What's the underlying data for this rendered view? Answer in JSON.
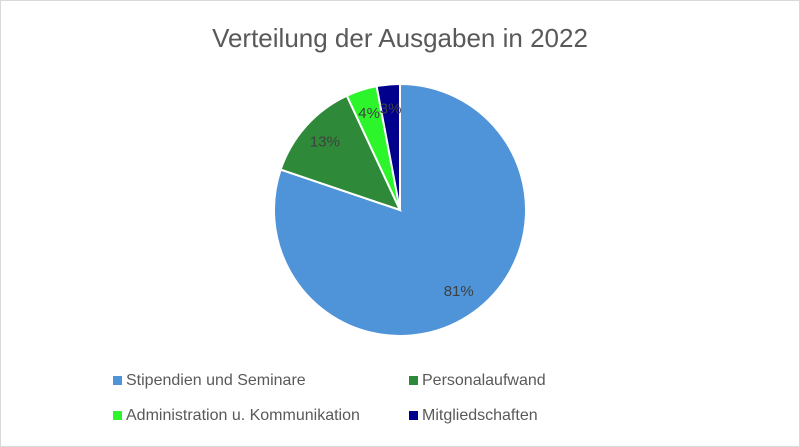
{
  "chart_data": {
    "type": "pie",
    "title": "Verteilung der Ausgaben in 2022",
    "categories": [
      "Stipendien und Seminare",
      "Personalaufwand",
      "Administration u. Kommunikation",
      "Mitgliedschaften"
    ],
    "values": [
      81,
      13,
      4,
      3
    ],
    "value_labels": [
      "81%",
      "13%",
      "4%",
      "3%"
    ],
    "colors": [
      "#4f94d8",
      "#2e8a38",
      "#2cf52c",
      "#00008c"
    ]
  }
}
